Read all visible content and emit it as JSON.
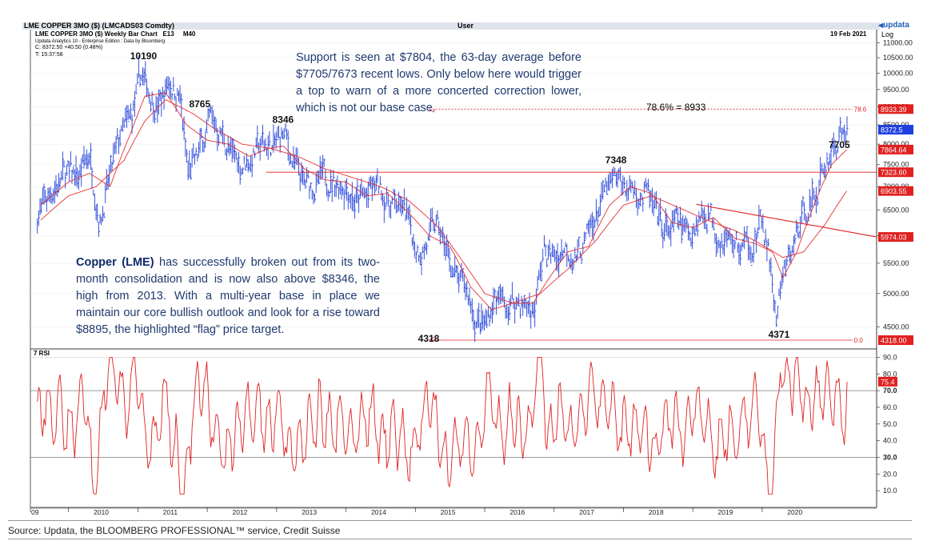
{
  "header": {
    "security": "LME COPPER   3MO ($) (LMCADS03 Comdty)",
    "user": "User",
    "brand": "updata",
    "chart_title": "LME COPPER   3MO ($) Weekly Bar Chart",
    "e_label": "E13",
    "m_label": "M40",
    "date": "19 Feb 2021",
    "scale": "Log",
    "edition": "Updata Analytics 10 - Enterprise Edition : Data by Bloomberg",
    "close_line": "C: 8372.50  +40.50 (0.48%)",
    "time_line": "T: 15:37:58"
  },
  "annotations": {
    "support_text": "Support is seen at $7804, the 63-day average before $7705/7673 recent lows. Only below here would trigger a top to warn of a more concerted correction lower, which is not our base case.",
    "copper_bold": "Copper (LME)",
    "copper_text": " has successfully broken out from its two-month consolidation and is now also above $8346, the high from 2013. With a multi-year base in place we maintain our core bullish outlook and look for a rise toward $8895, the highlighted “flag” price target.",
    "fib_label": "78.6% = 8933",
    "fib_tag": "78.6",
    "zero_tag": "0.0",
    "peaks": [
      {
        "label": "10190",
        "t": 2011.05,
        "v": 10190
      },
      {
        "label": "8765",
        "t": 2011.9,
        "v": 8765
      },
      {
        "label": "8346",
        "t": 2013.1,
        "v": 8346
      },
      {
        "label": "7348",
        "t": 2017.9,
        "v": 7348
      },
      {
        "label": "7705",
        "t": 2021.12,
        "v": 7705
      },
      {
        "label": "4318",
        "t": 2015.2,
        "v": 4318
      },
      {
        "label": "4371",
        "t": 2020.25,
        "v": 4371
      }
    ]
  },
  "price_tags": [
    {
      "label": "8933.39",
      "v": 8933.39,
      "color": "#e02020"
    },
    {
      "label": "8372.5",
      "v": 8372.5,
      "color": "#1f3fe0"
    },
    {
      "label": "7864.64",
      "v": 7864.64,
      "color": "#e02020"
    },
    {
      "label": "7323.60",
      "v": 7323.6,
      "color": "#e02020"
    },
    {
      "label": "6903.55",
      "v": 6903.55,
      "color": "#e02020"
    },
    {
      "label": "5974.03",
      "v": 5974.03,
      "color": "#e02020"
    },
    {
      "label": "4318.00",
      "v": 4318.0,
      "color": "#e02020"
    }
  ],
  "rsi_tag": {
    "label": "75.4",
    "v": 75.4
  },
  "rsi_label": "7 RSI",
  "source": "Source: Updata, the BLOOMBERG PROFESSIONAL™ service, Credit Suisse",
  "chart_data": {
    "type": "line",
    "title": "LME COPPER   3MO ($) Weekly Bar Chart",
    "y_scale": "log",
    "ylim": [
      4200,
      11500
    ],
    "y_ticks": [
      4500,
      5000,
      5500,
      6000,
      6500,
      7000,
      7500,
      8000,
      8500,
      9000,
      9500,
      10000,
      10500,
      11000
    ],
    "y_tick_labels": [
      "4500.00",
      "5000.00",
      "5500.00",
      "6000.00",
      "6500.00",
      "7000.00",
      "7500.00",
      "8000.00",
      "8500.00",
      "9000.00",
      "9500.00",
      "10000.00",
      "10500.00",
      "11000.00"
    ],
    "x_labels": [
      "09",
      "2010",
      "2011",
      "2012",
      "2013",
      "2014",
      "2015",
      "2016",
      "2017",
      "2018",
      "2019",
      "2020"
    ],
    "price_keyframes": [
      [
        2009.55,
        6400
      ],
      [
        2009.75,
        6900
      ],
      [
        2009.95,
        7300
      ],
      [
        2010.15,
        7200
      ],
      [
        2010.3,
        7800
      ],
      [
        2010.45,
        6300
      ],
      [
        2010.6,
        7200
      ],
      [
        2010.75,
        8200
      ],
      [
        2010.9,
        8600
      ],
      [
        2011.05,
        9900
      ],
      [
        2011.15,
        9500
      ],
      [
        2011.3,
        9000
      ],
      [
        2011.45,
        9800
      ],
      [
        2011.6,
        9300
      ],
      [
        2011.72,
        7300
      ],
      [
        2011.85,
        7600
      ],
      [
        2011.95,
        8200
      ],
      [
        2012.05,
        8600
      ],
      [
        2012.2,
        8300
      ],
      [
        2012.35,
        7700
      ],
      [
        2012.5,
        7500
      ],
      [
        2012.65,
        7700
      ],
      [
        2012.8,
        8000
      ],
      [
        2012.95,
        7900
      ],
      [
        2013.1,
        8250
      ],
      [
        2013.25,
        7500
      ],
      [
        2013.4,
        7000
      ],
      [
        2013.55,
        7000
      ],
      [
        2013.7,
        7200
      ],
      [
        2013.85,
        7100
      ],
      [
        2014.0,
        7100
      ],
      [
        2014.15,
        6700
      ],
      [
        2014.3,
        6800
      ],
      [
        2014.45,
        7000
      ],
      [
        2014.6,
        6700
      ],
      [
        2014.75,
        6600
      ],
      [
        2014.9,
        6300
      ],
      [
        2015.0,
        5800
      ],
      [
        2015.15,
        5800
      ],
      [
        2015.3,
        6200
      ],
      [
        2015.45,
        5700
      ],
      [
        2015.6,
        5200
      ],
      [
        2015.75,
        5000
      ],
      [
        2015.9,
        4550
      ],
      [
        2016.0,
        4500
      ],
      [
        2016.15,
        4950
      ],
      [
        2016.3,
        4800
      ],
      [
        2016.45,
        4900
      ],
      [
        2016.6,
        4800
      ],
      [
        2016.72,
        4750
      ],
      [
        2016.85,
        5700
      ],
      [
        2017.0,
        5600
      ],
      [
        2017.15,
        5800
      ],
      [
        2017.3,
        5650
      ],
      [
        2017.45,
        5800
      ],
      [
        2017.6,
        6400
      ],
      [
        2017.75,
        6900
      ],
      [
        2017.9,
        7100
      ],
      [
        2018.05,
        7000
      ],
      [
        2018.2,
        6900
      ],
      [
        2018.35,
        6800
      ],
      [
        2018.5,
        6200
      ],
      [
        2018.65,
        6100
      ],
      [
        2018.8,
        6200
      ],
      [
        2018.95,
        6050
      ],
      [
        2019.1,
        6400
      ],
      [
        2019.25,
        6450
      ],
      [
        2019.4,
        6000
      ],
      [
        2019.55,
        5900
      ],
      [
        2019.7,
        5750
      ],
      [
        2019.85,
        5900
      ],
      [
        2020.0,
        6200
      ],
      [
        2020.1,
        5600
      ],
      [
        2020.2,
        4600
      ],
      [
        2020.3,
        5200
      ],
      [
        2020.45,
        5800
      ],
      [
        2020.6,
        6500
      ],
      [
        2020.75,
        6800
      ],
      [
        2020.9,
        7400
      ],
      [
        2021.0,
        7900
      ],
      [
        2021.1,
        8100
      ],
      [
        2021.22,
        8372
      ]
    ],
    "ma_fast_keyframes": [
      [
        2009.6,
        6600
      ],
      [
        2010.0,
        7100
      ],
      [
        2010.3,
        7300
      ],
      [
        2010.6,
        7000
      ],
      [
        2010.9,
        8300
      ],
      [
        2011.1,
        9300
      ],
      [
        2011.4,
        9400
      ],
      [
        2011.7,
        8500
      ],
      [
        2012.0,
        8100
      ],
      [
        2012.3,
        8000
      ],
      [
        2012.6,
        7700
      ],
      [
        2012.9,
        7900
      ],
      [
        2013.1,
        7950
      ],
      [
        2013.4,
        7400
      ],
      [
        2013.7,
        7150
      ],
      [
        2014.0,
        7100
      ],
      [
        2014.3,
        6800
      ],
      [
        2014.6,
        6850
      ],
      [
        2014.9,
        6450
      ],
      [
        2015.2,
        6000
      ],
      [
        2015.5,
        5800
      ],
      [
        2015.8,
        5100
      ],
      [
        2016.1,
        4750
      ],
      [
        2016.4,
        4850
      ],
      [
        2016.7,
        4850
      ],
      [
        2016.9,
        5200
      ],
      [
        2017.2,
        5700
      ],
      [
        2017.5,
        5800
      ],
      [
        2017.8,
        6600
      ],
      [
        2018.1,
        7000
      ],
      [
        2018.4,
        6850
      ],
      [
        2018.7,
        6250
      ],
      [
        2019.0,
        6150
      ],
      [
        2019.3,
        6350
      ],
      [
        2019.6,
        5950
      ],
      [
        2019.9,
        5850
      ],
      [
        2020.15,
        5700
      ],
      [
        2020.3,
        5250
      ],
      [
        2020.5,
        5700
      ],
      [
        2020.8,
        6800
      ],
      [
        2021.0,
        7500
      ],
      [
        2021.22,
        7864
      ]
    ],
    "ma_slow_keyframes": [
      [
        2009.6,
        6300
      ],
      [
        2010.0,
        6800
      ],
      [
        2010.4,
        7000
      ],
      [
        2010.8,
        7600
      ],
      [
        2011.1,
        8600
      ],
      [
        2011.4,
        9200
      ],
      [
        2011.8,
        8800
      ],
      [
        2012.1,
        8400
      ],
      [
        2012.5,
        8000
      ],
      [
        2012.9,
        7900
      ],
      [
        2013.3,
        7700
      ],
      [
        2013.7,
        7400
      ],
      [
        2014.1,
        7200
      ],
      [
        2014.5,
        7000
      ],
      [
        2014.9,
        6700
      ],
      [
        2015.3,
        6200
      ],
      [
        2015.7,
        5500
      ],
      [
        2016.0,
        5000
      ],
      [
        2016.4,
        4850
      ],
      [
        2016.8,
        5000
      ],
      [
        2017.2,
        5400
      ],
      [
        2017.6,
        5900
      ],
      [
        2018.0,
        6600
      ],
      [
        2018.4,
        6800
      ],
      [
        2018.8,
        6550
      ],
      [
        2019.2,
        6300
      ],
      [
        2019.6,
        6100
      ],
      [
        2019.9,
        5900
      ],
      [
        2020.3,
        5600
      ],
      [
        2020.6,
        5700
      ],
      [
        2020.9,
        6200
      ],
      [
        2021.22,
        6904
      ]
    ],
    "resistance_line": {
      "from": [
        2012.85,
        7323.6
      ],
      "to": [
        2021.5,
        7323.6
      ]
    },
    "flag_line": {
      "from": [
        2019.05,
        6620
      ],
      "to": [
        2021.5,
        5974
      ]
    },
    "fib_line": {
      "from": [
        2015.2,
        8933
      ],
      "to": [
        2021.3,
        8933
      ]
    },
    "low_line": {
      "from": [
        2015.2,
        4318
      ],
      "to": [
        2021.3,
        4318
      ]
    },
    "rsi": {
      "ylim": [
        0,
        95
      ],
      "y_ticks": [
        10,
        20,
        30,
        40,
        50,
        60,
        70,
        80,
        90
      ],
      "y_tick_labels": [
        "10.0",
        "20.0",
        "30.0",
        "40.0",
        "50.0",
        "60.0",
        "70.0",
        "80.0",
        "90.0"
      ],
      "reference_lines": [
        70,
        30
      ],
      "last_value": 75.4
    }
  }
}
